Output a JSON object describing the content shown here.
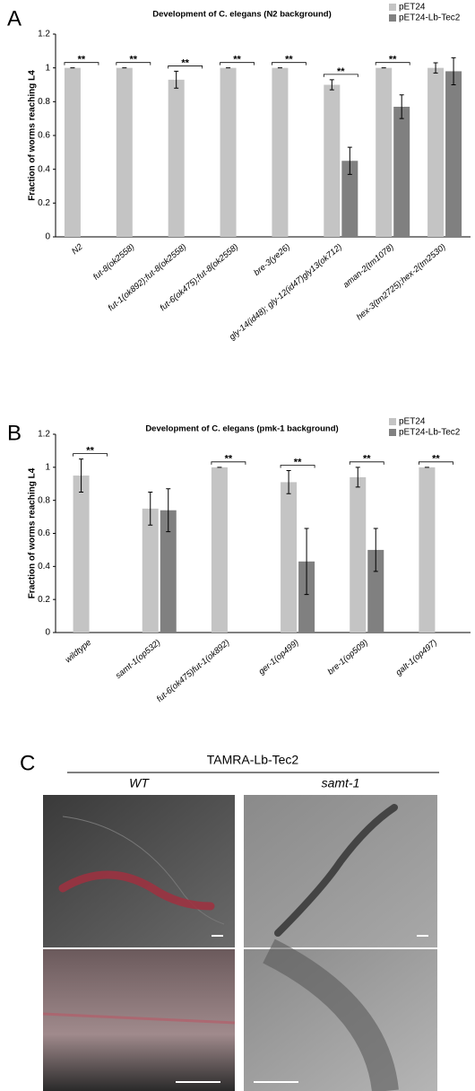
{
  "chart_data": [
    {
      "type": "bar",
      "panel": "A",
      "title": "Development of C. elegans (N2 background)",
      "y_label": "Fraction of worms reaching L4",
      "categories": [
        "N2",
        "fut-8(ok2558)",
        "fut-1(ok892);fut-8(ok2558)",
        "fut-6(ok475);fut-8(ok2558)",
        "bre-3(ye26)",
        "gly-14(id48); gly-12(id47)gly13(ok712)",
        "aman-2(tm1078)",
        "hex-3(tm2725);hex-2(tm2530)"
      ],
      "series": [
        {
          "name": "pET24",
          "color": "#c4c4c4",
          "values": [
            1,
            1,
            0.93,
            1,
            1,
            0.9,
            1,
            1
          ],
          "errors": [
            0,
            0,
            0.05,
            0,
            0,
            0.03,
            0,
            0.03
          ]
        },
        {
          "name": "pET24-Lb-Tec2",
          "color": "#808080",
          "values": [
            0,
            0,
            0,
            0,
            0,
            0.45,
            0.77,
            0.98
          ],
          "errors": [
            null,
            null,
            null,
            null,
            null,
            0.08,
            0.07,
            0.08
          ]
        }
      ],
      "significance_labels": [
        "**",
        "**",
        "**",
        "**",
        "**",
        "**",
        "**",
        null
      ],
      "ylim": [
        0,
        1.2
      ],
      "yticks": [
        0,
        0.2,
        0.4,
        0.6,
        0.8,
        1,
        1.2
      ],
      "legend": "upper right"
    },
    {
      "type": "bar",
      "panel": "B",
      "title": "Development of C. elegans (pmk-1 background)",
      "y_label": "Fraction of worms reaching L4",
      "categories": [
        "wildtype",
        "samt-1(op532)",
        "fut-6(ok475)fut-1(ok892)",
        "ger-1(op499)",
        "bre-1(op509)",
        "galt-1(op497)"
      ],
      "series": [
        {
          "name": "pET24",
          "color": "#c4c4c4",
          "values": [
            0.95,
            0.75,
            1,
            0.91,
            0.94,
            1
          ],
          "errors": [
            0.1,
            0.1,
            0,
            0.07,
            0.06,
            0
          ]
        },
        {
          "name": "pET24-Lb-Tec2",
          "color": "#808080",
          "values": [
            0,
            0.74,
            0,
            0.43,
            0.5,
            0
          ],
          "errors": [
            null,
            0.13,
            null,
            0.2,
            0.13,
            null
          ]
        }
      ],
      "significance_labels": [
        "**",
        null,
        "**",
        "**",
        "**",
        "**"
      ],
      "ylim": [
        0,
        1.2
      ],
      "yticks": [
        0,
        0.2,
        0.4,
        0.6,
        0.8,
        1,
        1.2
      ],
      "legend": "upper right"
    }
  ],
  "panel_c": {
    "label": "C",
    "title": "TAMRA-Lb-Tec2",
    "columns": [
      "WT",
      "samt-1"
    ]
  }
}
